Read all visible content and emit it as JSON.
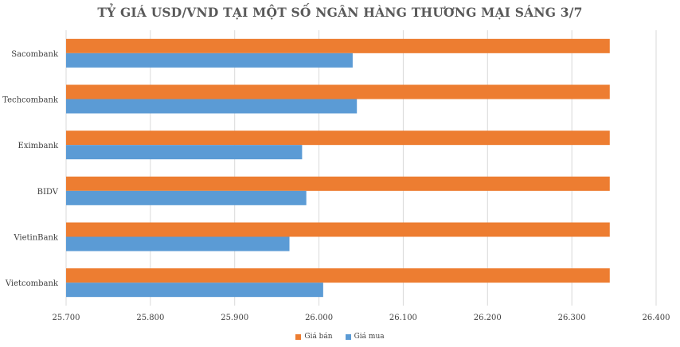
{
  "chart_data": {
    "type": "bar",
    "orientation": "horizontal",
    "title": "TỶ GIÁ USD/VND TẠI MỘT SỐ NGÂN HÀNG THƯƠNG MẠI SÁNG 3/7",
    "categories": [
      "Sacombank",
      "Techcombank",
      "Eximbank",
      "BIDV",
      "VietinBank",
      "Vietcombank"
    ],
    "series": [
      {
        "name": "Giá bán",
        "color": "#ED7D31",
        "values": [
          26345,
          26345,
          26345,
          26345,
          26345,
          26345
        ]
      },
      {
        "name": "Giá mua",
        "color": "#5B9BD5",
        "values": [
          26040,
          26045,
          25980,
          25985,
          25965,
          26005
        ]
      }
    ],
    "xlim": [
      25700,
      26400
    ],
    "xticks": [
      "25.700",
      "25.800",
      "25.900",
      "26.000",
      "26.100",
      "26.200",
      "26.300",
      "26.400"
    ],
    "xtick_values": [
      25700,
      25800,
      25900,
      26000,
      26100,
      26200,
      26300,
      26400
    ],
    "grid": true,
    "legend_position": "bottom"
  }
}
